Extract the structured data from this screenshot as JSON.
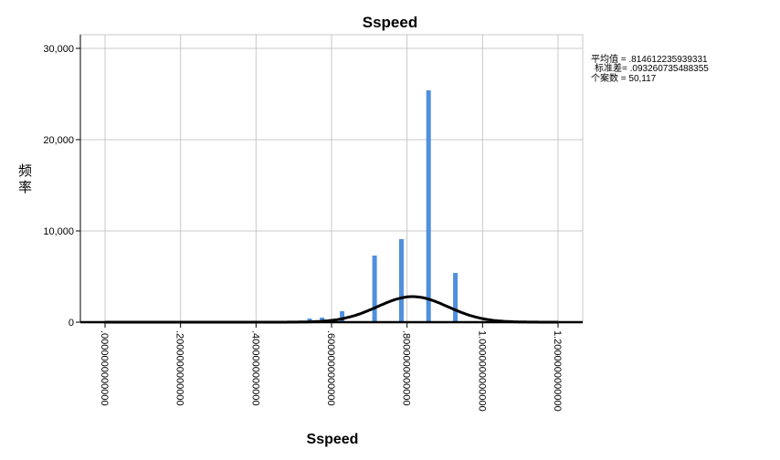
{
  "chart_data": {
    "type": "bar",
    "title": "Sspeed",
    "xlabel": "Sspeed",
    "ylabel": "频率",
    "xlim": [
      0,
      1.2
    ],
    "ylim": [
      0,
      30000
    ],
    "x_ticks": [
      {
        "value": 0.0,
        "label": ".0000000000000"
      },
      {
        "value": 0.2,
        "label": ".2000000000000"
      },
      {
        "value": 0.4,
        "label": ".4000000000000"
      },
      {
        "value": 0.6,
        "label": ".6000000000000"
      },
      {
        "value": 0.8,
        "label": ".8000000000000"
      },
      {
        "value": 1.0,
        "label": "1.0000000000000"
      },
      {
        "value": 1.2,
        "label": "1.2000000000000"
      }
    ],
    "y_ticks": [
      {
        "value": 0,
        "label": "0"
      },
      {
        "value": 10000,
        "label": "10,000"
      },
      {
        "value": 20000,
        "label": "20,000"
      },
      {
        "value": 30000,
        "label": "30,000"
      }
    ],
    "bars": [
      {
        "x": 0.495,
        "count": 30
      },
      {
        "x": 0.542,
        "count": 400
      },
      {
        "x": 0.575,
        "count": 500
      },
      {
        "x": 0.628,
        "count": 1200
      },
      {
        "x": 0.714,
        "count": 7300
      },
      {
        "x": 0.785,
        "count": 9100
      },
      {
        "x": 0.857,
        "count": 25400
      },
      {
        "x": 0.928,
        "count": 5400
      }
    ],
    "normal_curve": {
      "mean": 0.814612235939331,
      "std": 0.093260735488355,
      "peak": 2800
    },
    "grid": true,
    "stats": {
      "mean_label": "平均值 = .814612235939331",
      "std_label": "标准差= .093260735488355",
      "n_label": "个案数 = 50,117"
    },
    "colors": {
      "bar": "#4f8fdf",
      "curve": "#000000",
      "grid": "#c8c8c8"
    }
  }
}
